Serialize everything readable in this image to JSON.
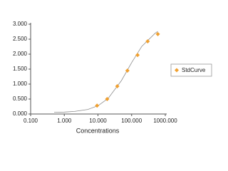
{
  "chart_data": {
    "type": "scatter",
    "xlabel": "Concentrations",
    "xscale": "log",
    "xlim": [
      0.1,
      1000
    ],
    "xticks": [
      {
        "value": 0.1,
        "label": "0.100"
      },
      {
        "value": 1,
        "label": "1.000"
      },
      {
        "value": 10,
        "label": "10.000"
      },
      {
        "value": 100,
        "label": "100.000"
      },
      {
        "value": 1000,
        "label": "1000.000"
      }
    ],
    "ylim": [
      0,
      3
    ],
    "yticks": [
      {
        "value": 0,
        "label": "0.000"
      },
      {
        "value": 0.5,
        "label": "0.500"
      },
      {
        "value": 1,
        "label": "1.000"
      },
      {
        "value": 1.5,
        "label": "1.500"
      },
      {
        "value": 2,
        "label": "2.000"
      },
      {
        "value": 2.5,
        "label": "2.500"
      },
      {
        "value": 3,
        "label": "3.000"
      }
    ],
    "legend": "right",
    "series": [
      {
        "name": "StdCurve",
        "color": "#f0a030",
        "x": [
          9.4,
          18.8,
          37.5,
          75,
          150,
          300,
          600
        ],
        "values": [
          0.28,
          0.5,
          0.93,
          1.45,
          1.97,
          2.43,
          2.67
        ]
      }
    ],
    "curve": {
      "color": "#8c8c8c",
      "x": [
        0.5,
        1,
        2,
        5,
        10,
        20,
        50,
        100,
        200,
        500,
        600
      ],
      "values": [
        0.057,
        0.065,
        0.085,
        0.153,
        0.275,
        0.52,
        1.12,
        1.72,
        2.26,
        2.7,
        2.76
      ]
    }
  }
}
